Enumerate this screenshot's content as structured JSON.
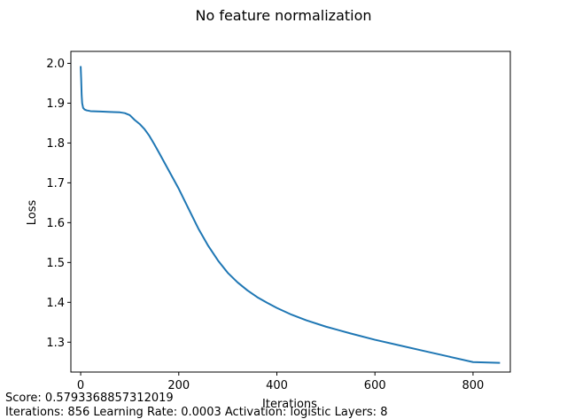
{
  "chart_data": {
    "type": "line",
    "title": "No feature normalization",
    "xlabel": "Iterations",
    "ylabel": "Loss",
    "xlim": [
      -20,
      876
    ],
    "ylim": [
      1.225,
      2.03
    ],
    "xticks": [
      0,
      200,
      400,
      600,
      800
    ],
    "yticks": [
      1.3,
      1.4,
      1.5,
      1.6,
      1.7,
      1.8,
      1.9,
      2.0
    ],
    "grid": false,
    "color": "#1f77b4",
    "series": [
      {
        "x": [
          0,
          1,
          2,
          3,
          5,
          8,
          12,
          20,
          40,
          60,
          80,
          90,
          100,
          110,
          120,
          130,
          140,
          150,
          160,
          180,
          200,
          220,
          240,
          260,
          280,
          300,
          320,
          340,
          360,
          380,
          400,
          430,
          460,
          500,
          550,
          600,
          650,
          700,
          750,
          800,
          855
        ],
        "y": [
          1.993,
          1.96,
          1.92,
          1.9,
          1.888,
          1.884,
          1.882,
          1.88,
          1.879,
          1.878,
          1.877,
          1.875,
          1.87,
          1.858,
          1.848,
          1.835,
          1.818,
          1.797,
          1.775,
          1.73,
          1.685,
          1.635,
          1.585,
          1.542,
          1.505,
          1.474,
          1.45,
          1.43,
          1.413,
          1.399,
          1.386,
          1.369,
          1.355,
          1.339,
          1.322,
          1.306,
          1.292,
          1.278,
          1.264,
          1.25,
          1.248
        ]
      }
    ]
  },
  "captions": {
    "score": "Score: 0.5793368857312019",
    "params": "Iterations: 856 Learning Rate: 0.0003 Activation: logistic Layers: 8"
  }
}
